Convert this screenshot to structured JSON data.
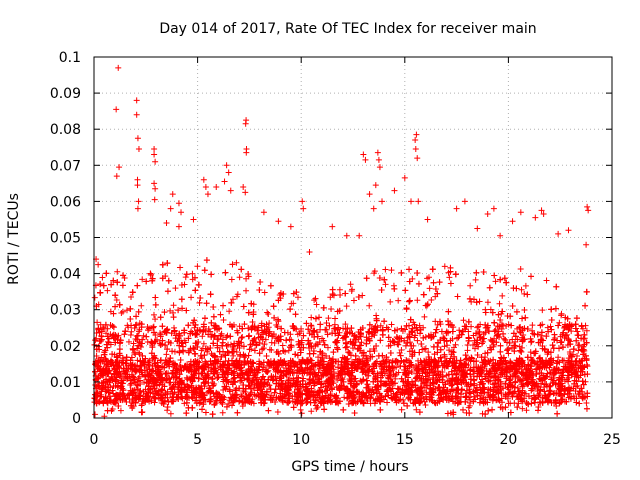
{
  "chart_data": {
    "type": "scatter",
    "title": "Day 014 of 2017, Rate Of TEC Index for receiver main",
    "xlabel": "GPS time / hours",
    "ylabel": "ROTI / TECUs",
    "xlim": [
      0,
      25
    ],
    "ylim": [
      0,
      0.1
    ],
    "x_ticks": [
      "0",
      "5",
      "10",
      "15",
      "20",
      "25"
    ],
    "y_ticks": [
      "0",
      "0.01",
      "0.02",
      "0.03",
      "0.04",
      "0.05",
      "0.06",
      "0.07",
      "0.08",
      "0.09",
      "0.1"
    ],
    "grid": true,
    "marker": "+",
    "color": "#ff0000",
    "series": [
      {
        "values": [
          [
            1.17,
            0.097
          ],
          [
            1.07,
            0.0855
          ],
          [
            1.21,
            0.0695
          ],
          [
            1.1,
            0.067
          ],
          [
            2.06,
            0.088
          ],
          [
            2.06,
            0.084
          ],
          [
            2.12,
            0.0775
          ],
          [
            2.17,
            0.0745
          ],
          [
            2.1,
            0.066
          ],
          [
            2.1,
            0.0645
          ],
          [
            2.15,
            0.06
          ],
          [
            2.12,
            0.058
          ],
          [
            2.9,
            0.0745
          ],
          [
            2.9,
            0.073
          ],
          [
            2.95,
            0.071
          ],
          [
            2.9,
            0.065
          ],
          [
            2.95,
            0.0635
          ],
          [
            2.93,
            0.0605
          ],
          [
            3.8,
            0.062
          ],
          [
            3.7,
            0.058
          ],
          [
            3.5,
            0.054
          ],
          [
            4.1,
            0.0595
          ],
          [
            4.2,
            0.057
          ],
          [
            4.1,
            0.053
          ],
          [
            4.8,
            0.055
          ],
          [
            5.3,
            0.066
          ],
          [
            5.4,
            0.064
          ],
          [
            5.5,
            0.062
          ],
          [
            5.9,
            0.064
          ],
          [
            6.4,
            0.07
          ],
          [
            6.5,
            0.068
          ],
          [
            6.3,
            0.0655
          ],
          [
            6.6,
            0.063
          ],
          [
            7.34,
            0.0825
          ],
          [
            7.32,
            0.0815
          ],
          [
            7.36,
            0.0745
          ],
          [
            7.35,
            0.0735
          ],
          [
            7.2,
            0.064
          ],
          [
            7.3,
            0.0625
          ],
          [
            8.2,
            0.057
          ],
          [
            8.9,
            0.0545
          ],
          [
            9.5,
            0.053
          ],
          [
            10.05,
            0.06
          ],
          [
            10.1,
            0.058
          ],
          [
            10.4,
            0.046
          ],
          [
            11.5,
            0.053
          ],
          [
            12.2,
            0.0505
          ],
          [
            12.8,
            0.0505
          ],
          [
            13.0,
            0.073
          ],
          [
            13.1,
            0.0715
          ],
          [
            13.3,
            0.062
          ],
          [
            13.5,
            0.058
          ],
          [
            13.7,
            0.0735
          ],
          [
            13.75,
            0.0715
          ],
          [
            13.8,
            0.0695
          ],
          [
            13.6,
            0.0645
          ],
          [
            13.9,
            0.06
          ],
          [
            14.5,
            0.063
          ],
          [
            15.0,
            0.0665
          ],
          [
            15.3,
            0.06
          ],
          [
            15.56,
            0.0785
          ],
          [
            15.5,
            0.077
          ],
          [
            15.53,
            0.0745
          ],
          [
            15.6,
            0.072
          ],
          [
            15.65,
            0.06
          ],
          [
            16.1,
            0.055
          ],
          [
            17.5,
            0.058
          ],
          [
            17.9,
            0.06
          ],
          [
            18.5,
            0.0525
          ],
          [
            19.0,
            0.0565
          ],
          [
            19.3,
            0.058
          ],
          [
            19.6,
            0.0505
          ],
          [
            20.2,
            0.0545
          ],
          [
            20.6,
            0.057
          ],
          [
            21.3,
            0.0555
          ],
          [
            21.6,
            0.0575
          ],
          [
            21.7,
            0.0565
          ],
          [
            22.4,
            0.051
          ],
          [
            22.9,
            0.052
          ],
          [
            23.8,
            0.0585
          ],
          [
            23.85,
            0.0575
          ],
          [
            23.75,
            0.048
          ],
          [
            0.1,
            0.044
          ],
          [
            0.2,
            0.0425
          ],
          [
            0.15,
            0.0265
          ],
          [
            0.05,
            0.001
          ],
          [
            0.5,
            0.0005
          ],
          [
            0.9,
            0.0025
          ]
        ]
      }
    ]
  }
}
